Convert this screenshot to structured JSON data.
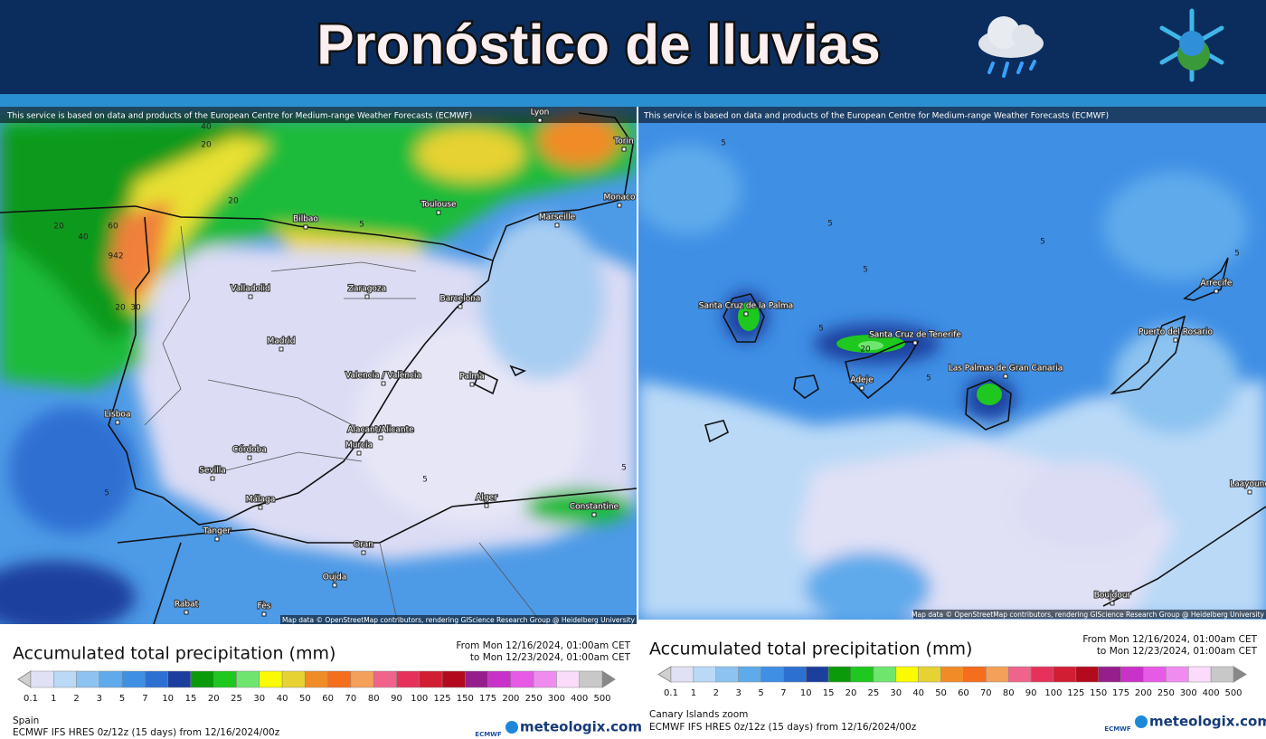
{
  "header": {
    "title": "Pronóstico de lluvias"
  },
  "scale": {
    "labels": [
      0.1,
      1,
      2,
      3,
      5,
      7,
      10,
      15,
      20,
      25,
      30,
      40,
      50,
      60,
      70,
      80,
      90,
      100,
      125,
      150,
      175,
      200,
      250,
      300,
      400,
      500
    ],
    "colors": [
      "#e1e1f5",
      "#b9d9f7",
      "#8cc3f0",
      "#5eaaeb",
      "#3f8fe5",
      "#2d70d2",
      "#1c3f9e",
      "#0a9a0a",
      "#1ec81e",
      "#6ee66e",
      "#fafa00",
      "#e6d232",
      "#f08c28",
      "#f56e1e",
      "#f5a05a",
      "#f0648c",
      "#e6325a",
      "#d21e32",
      "#b40a1e",
      "#961e8c",
      "#c832c8",
      "#e65ae6",
      "#f08cf0",
      "#fadcfa",
      "#c8c8c8"
    ]
  },
  "panels": [
    {
      "notice": "This service is based on data and products of the European Centre for Medium-range Weather Forecasts (ECMWF)",
      "places": [
        "Lyon",
        "Torin",
        "Toulouse",
        "Monaco",
        "Bilbao",
        "Marseille",
        "Valladolid",
        "Zaragoza",
        "Barcelona",
        "Madrid",
        "Valencia / València",
        "Palma",
        "Lisboa",
        "Alacant/Alicante",
        "Murcia",
        "Córdoba",
        "Sevilla",
        "Málaga",
        "Alger",
        "Constantine",
        "Tanger",
        "Oran",
        "Oujda",
        "Rabat",
        "Fès"
      ],
      "contours": [
        "20",
        "40",
        "20",
        "60",
        "40",
        "942",
        "20",
        "30",
        "20",
        "5",
        "5",
        "5",
        "5"
      ],
      "attribution": "Map data © OpenStreetMap contributors, rendering GIScience Research Group @ Heidelberg University",
      "legend_title": "Accumulated total precipitation (mm)",
      "period": [
        "From Mon 12/16/2024, 01:00am CET",
        "to Mon 12/23/2024, 01:00am CET"
      ],
      "region": "Spain",
      "model": "ECMWF IFS HRES 0z/12z (15 days) from 12/16/2024/00z",
      "ecmwf": "ECMWF",
      "brand": "meteologix.com"
    },
    {
      "notice": "This service is based on data and products of the European Centre for Medium-range Weather Forecasts (ECMWF)",
      "places": [
        "Santa Cruz de la Palma",
        "Santa Cruz de Tenerife",
        "Adeje",
        "Las Palmas de Gran Canaria",
        "Puerto del Rosario",
        "Arrecife",
        "Boujdour",
        "Laayoune"
      ],
      "contours": [
        "5",
        "5",
        "5",
        "5",
        "5",
        "20",
        "5",
        "5"
      ],
      "attribution": "Map data © OpenStreetMap contributors, rendering GIScience Research Group @ Heidelberg University",
      "legend_title": "Accumulated total precipitation (mm)",
      "period": [
        "From Mon 12/16/2024, 01:00am CET",
        "to Mon 12/23/2024, 01:00am CET"
      ],
      "region": "Canary Islands zoom",
      "model": "ECMWF IFS HRES 0z/12z (15 days) from 12/16/2024/00z",
      "ecmwf": "ECMWF",
      "brand": "meteologix.com"
    }
  ]
}
